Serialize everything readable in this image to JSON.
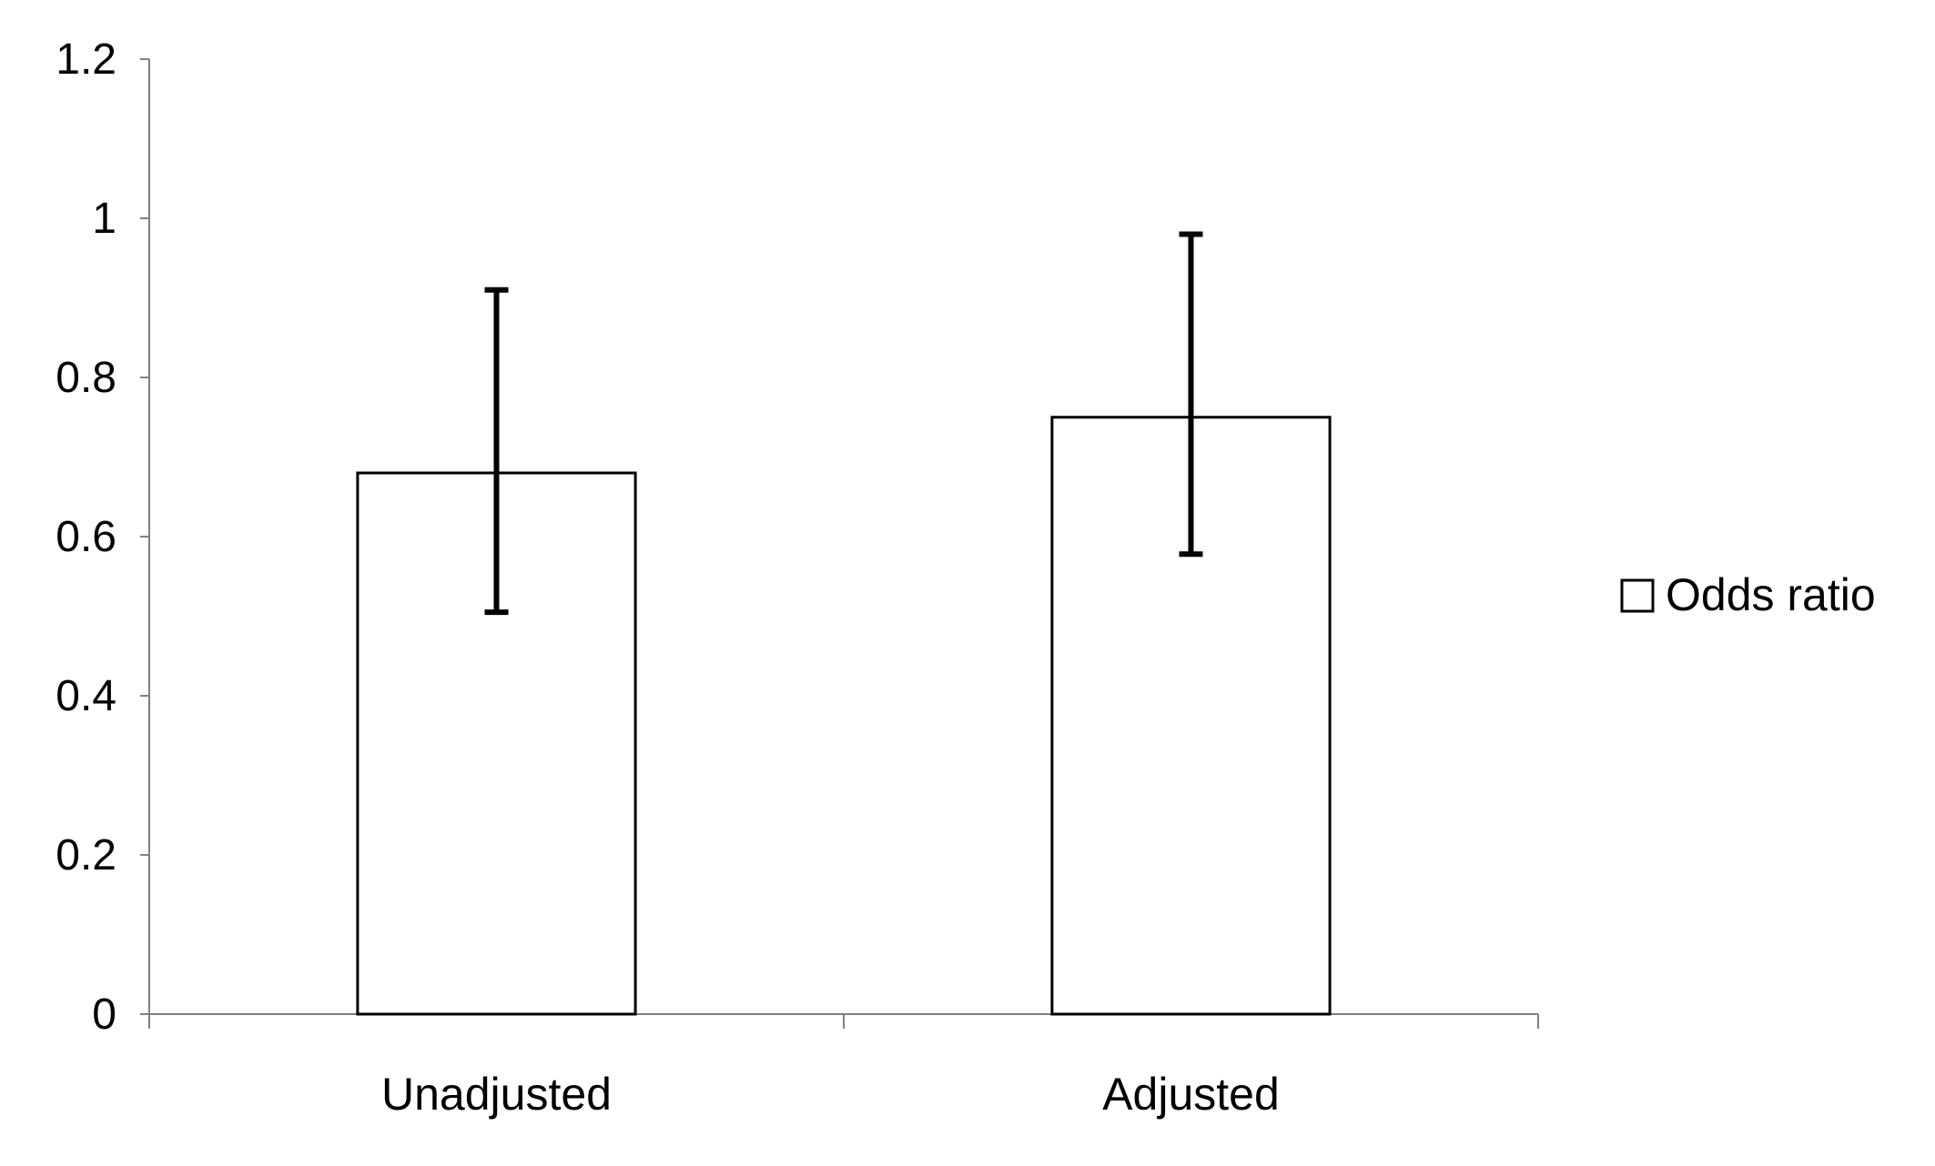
{
  "chart_data": {
    "type": "bar",
    "title": "",
    "xlabel": "",
    "ylabel": "",
    "categories": [
      "Unadjusted",
      "Adjusted"
    ],
    "series": [
      {
        "name": "Odds ratio",
        "values": [
          0.68,
          0.75
        ],
        "error_low": [
          0.505,
          0.578
        ],
        "error_high": [
          0.91,
          0.98
        ],
        "color": "#ffffff",
        "edge_color": "#000000"
      }
    ],
    "ylim": [
      0,
      1.2
    ],
    "yticks": [
      "0",
      "0.2",
      "0.4",
      "0.6",
      "0.8",
      "1",
      "1.2"
    ],
    "grid": false,
    "legend_position": "right"
  }
}
